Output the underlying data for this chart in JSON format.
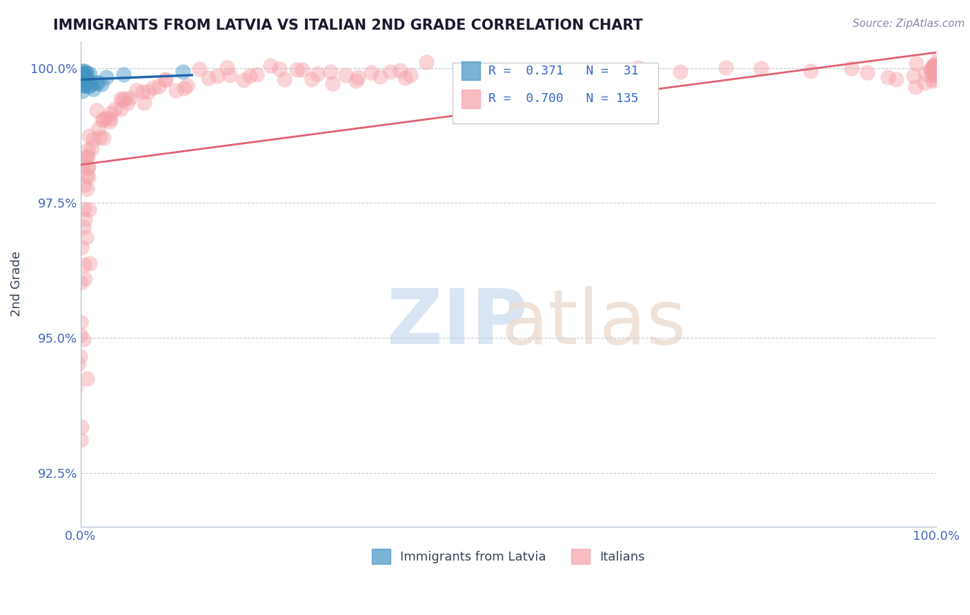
{
  "title": "IMMIGRANTS FROM LATVIA VS ITALIAN 2ND GRADE CORRELATION CHART",
  "source_text": "Source: ZipAtlas.com",
  "ylabel": "2nd Grade",
  "xlim": [
    0.0,
    1.0
  ],
  "ylim": [
    0.915,
    1.005
  ],
  "yticks": [
    0.925,
    0.95,
    0.975,
    1.0
  ],
  "ytick_labels": [
    "92.5%",
    "95.0%",
    "97.5%",
    "100.0%"
  ],
  "xtick_labels": [
    "0.0%",
    "100.0%"
  ],
  "legend_entries": [
    {
      "label": "Immigrants from Latvia"
    },
    {
      "label": "Italians"
    }
  ],
  "r_latvian": 0.371,
  "n_latvian": 31,
  "r_italian": 0.7,
  "n_italian": 135,
  "blue_color": "#4393c3",
  "pink_color": "#f4a0a8",
  "blue_line_color": "#2166ac",
  "pink_line_color": "#e06070",
  "title_color": "#1a1a2e",
  "grid_color": "#c0c8d8",
  "watermark_color": "#d0dff0",
  "ylabel_color": "#334455",
  "yaxis_label_color": "#4466bb",
  "xaxis_label_color": "#4466bb",
  "legend_R_color": "#3366cc",
  "scatter_blue_x": [
    0.001,
    0.001,
    0.001,
    0.002,
    0.002,
    0.002,
    0.002,
    0.003,
    0.003,
    0.003,
    0.003,
    0.003,
    0.004,
    0.004,
    0.004,
    0.005,
    0.005,
    0.006,
    0.006,
    0.007,
    0.008,
    0.009,
    0.01,
    0.012,
    0.014,
    0.018,
    0.02,
    0.025,
    0.03,
    0.05,
    0.12
  ],
  "scatter_blue_y": [
    0.999,
    0.999,
    0.998,
    0.999,
    0.999,
    0.998,
    0.997,
    0.999,
    0.998,
    0.998,
    0.997,
    0.996,
    0.999,
    0.998,
    0.997,
    0.998,
    0.997,
    0.999,
    0.998,
    0.999,
    0.998,
    0.997,
    0.999,
    0.997,
    0.996,
    0.997,
    0.997,
    0.997,
    0.998,
    0.999,
    0.999
  ],
  "scatter_pink_x": [
    0.001,
    0.001,
    0.001,
    0.002,
    0.002,
    0.002,
    0.002,
    0.003,
    0.003,
    0.003,
    0.003,
    0.004,
    0.004,
    0.004,
    0.005,
    0.005,
    0.005,
    0.006,
    0.006,
    0.007,
    0.007,
    0.008,
    0.008,
    0.009,
    0.009,
    0.01,
    0.01,
    0.011,
    0.012,
    0.013,
    0.015,
    0.016,
    0.017,
    0.018,
    0.02,
    0.022,
    0.025,
    0.028,
    0.03,
    0.033,
    0.035,
    0.038,
    0.04,
    0.042,
    0.045,
    0.048,
    0.05,
    0.055,
    0.06,
    0.065,
    0.07,
    0.075,
    0.08,
    0.085,
    0.09,
    0.095,
    0.1,
    0.11,
    0.12,
    0.13,
    0.14,
    0.15,
    0.16,
    0.17,
    0.18,
    0.19,
    0.2,
    0.21,
    0.22,
    0.23,
    0.24,
    0.25,
    0.26,
    0.27,
    0.28,
    0.29,
    0.3,
    0.31,
    0.32,
    0.33,
    0.34,
    0.35,
    0.36,
    0.37,
    0.38,
    0.39,
    0.4,
    0.45,
    0.5,
    0.55,
    0.6,
    0.65,
    0.7,
    0.75,
    0.8,
    0.85,
    0.9,
    0.92,
    0.94,
    0.96,
    0.97,
    0.975,
    0.98,
    0.985,
    0.988,
    0.99,
    0.992,
    0.994,
    0.996,
    0.997,
    0.998,
    0.998,
    0.999,
    0.999,
    0.999,
    1.0,
    1.0,
    1.0,
    1.0,
    1.0,
    1.0,
    1.0,
    1.0,
    1.0,
    1.0,
    1.0,
    1.0,
    1.0,
    1.0,
    1.0,
    1.0,
    1.0,
    1.0,
    1.0,
    1.0
  ],
  "scatter_pink_y": [
    0.93,
    0.935,
    0.94,
    0.942,
    0.945,
    0.948,
    0.95,
    0.952,
    0.955,
    0.957,
    0.96,
    0.962,
    0.964,
    0.966,
    0.968,
    0.97,
    0.972,
    0.974,
    0.976,
    0.977,
    0.978,
    0.979,
    0.98,
    0.981,
    0.982,
    0.983,
    0.984,
    0.984,
    0.985,
    0.985,
    0.986,
    0.987,
    0.987,
    0.988,
    0.988,
    0.989,
    0.989,
    0.99,
    0.99,
    0.991,
    0.991,
    0.992,
    0.992,
    0.993,
    0.993,
    0.993,
    0.994,
    0.994,
    0.994,
    0.995,
    0.995,
    0.995,
    0.996,
    0.996,
    0.996,
    0.997,
    0.997,
    0.997,
    0.997,
    0.998,
    0.998,
    0.998,
    0.998,
    0.999,
    0.999,
    0.999,
    0.999,
    0.999,
    0.999,
    0.999,
    0.999,
    0.999,
    0.999,
    0.999,
    0.999,
    0.999,
    0.999,
    0.999,
    0.999,
    0.999,
    0.999,
    0.999,
    0.999,
    0.999,
    0.999,
    0.999,
    0.999,
    0.999,
    0.999,
    0.999,
    0.999,
    0.999,
    0.999,
    0.999,
    0.999,
    0.999,
    0.999,
    0.999,
    0.999,
    0.999,
    0.999,
    0.999,
    0.999,
    0.999,
    0.999,
    1.0,
    1.0,
    1.0,
    1.0,
    1.0,
    1.0,
    1.0,
    1.0,
    1.0,
    1.0,
    1.0,
    1.0,
    1.0,
    1.0,
    1.0,
    1.0,
    1.0,
    1.0,
    1.0,
    1.0,
    1.0,
    1.0,
    1.0,
    1.0,
    1.0,
    1.0,
    1.0,
    1.0,
    1.0,
    1.0
  ]
}
